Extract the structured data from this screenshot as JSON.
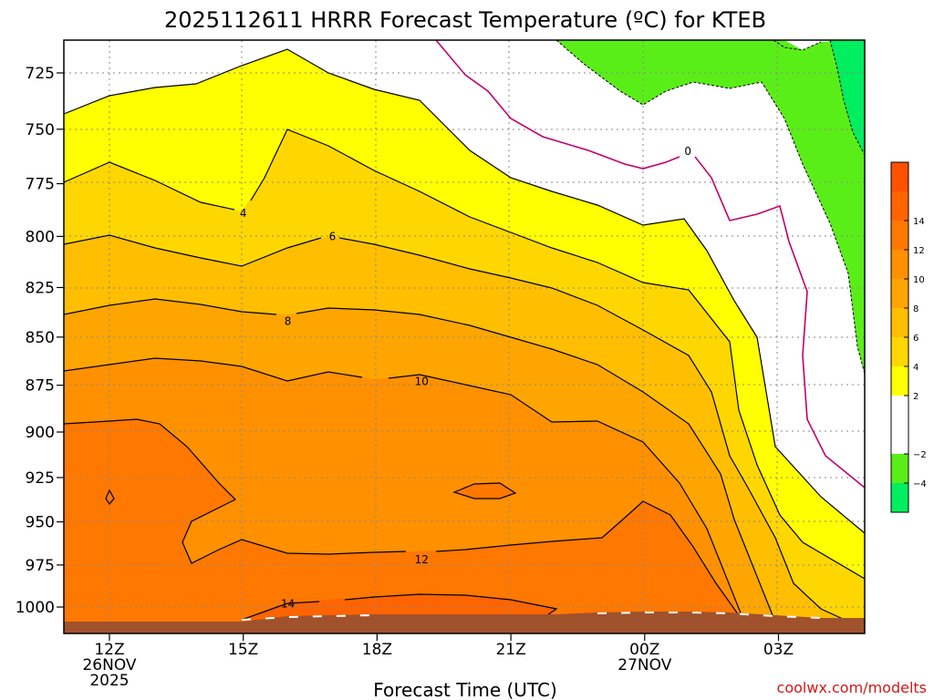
{
  "chart_data": {
    "type": "heatmap",
    "title": "2025112611 HRRR Forecast Temperature (ºC) for KTEB",
    "xlabel": "Forecast Time (UTC)",
    "ylabel": "",
    "credit": "coolwx.com/modelts",
    "x_ticks": [
      {
        "hour": 12,
        "lines": [
          "12Z",
          "26NOV",
          "2025"
        ]
      },
      {
        "hour": 15,
        "lines": [
          "15Z"
        ]
      },
      {
        "hour": 18,
        "lines": [
          "18Z"
        ]
      },
      {
        "hour": 21,
        "lines": [
          "21Z"
        ]
      },
      {
        "hour": 24,
        "lines": [
          "00Z",
          "27NOV"
        ]
      },
      {
        "hour": 27,
        "lines": [
          "03Z"
        ]
      }
    ],
    "xlim": [
      11,
      29
    ],
    "y_ticks": [
      725,
      750,
      775,
      800,
      825,
      850,
      875,
      900,
      925,
      950,
      975,
      1000
    ],
    "ylim": [
      1012,
      710
    ],
    "y_inverted": true,
    "contour_levels": [
      -4,
      -2,
      0,
      2,
      4,
      6,
      8,
      10,
      12,
      14
    ],
    "contour_labels": [
      {
        "text": "0",
        "hour": 24.97,
        "p": 760
      },
      {
        "text": "4",
        "hour": 15.0,
        "p": 789
      },
      {
        "text": "6",
        "hour": 17.0,
        "p": 800
      },
      {
        "text": "8",
        "hour": 16.0,
        "p": 842
      },
      {
        "text": "10",
        "hour": 19.0,
        "p": 873
      },
      {
        "text": "12",
        "hour": 19.0,
        "p": 972
      },
      {
        "text": "14",
        "hour": 16.0,
        "p": 998
      }
    ],
    "colorbar": {
      "ticks": [
        14,
        12,
        10,
        8,
        6,
        4,
        2,
        -2,
        -4
      ],
      "bins": [
        {
          "min": 16,
          "max": 18,
          "color": "#ff5000"
        },
        {
          "min": 14,
          "max": 16,
          "color": "#ff6400"
        },
        {
          "min": 12,
          "max": 14,
          "color": "#ff7800"
        },
        {
          "min": 10,
          "max": 12,
          "color": "#ff9000"
        },
        {
          "min": 8,
          "max": 10,
          "color": "#ffa500"
        },
        {
          "min": 6,
          "max": 8,
          "color": "#ffbe00"
        },
        {
          "min": 4,
          "max": 6,
          "color": "#ffd700"
        },
        {
          "min": 2,
          "max": 4,
          "color": "#ffff00"
        },
        {
          "min": -2,
          "max": 2,
          "color": "#ffffff"
        },
        {
          "min": -4,
          "max": -2,
          "color": "#5aee18"
        },
        {
          "min": -6,
          "max": -4,
          "color": "#00ee60"
        }
      ]
    },
    "colors": {
      "ground": "#a0522d",
      "freezing_line": "#c0006e",
      "contour_line": "#000000"
    }
  }
}
